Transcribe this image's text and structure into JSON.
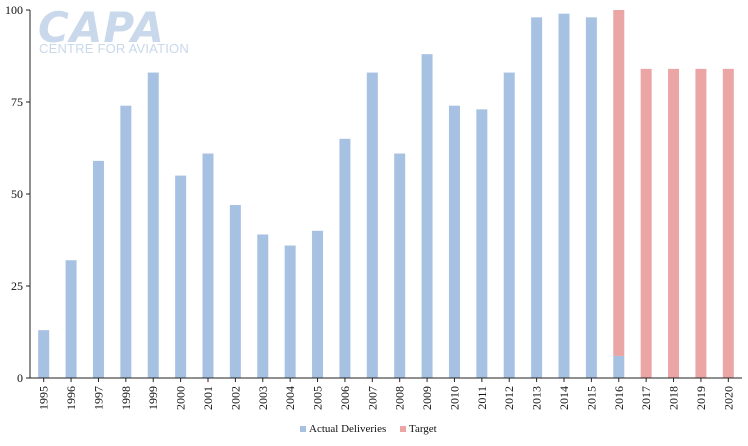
{
  "watermark": {
    "brand": "CAPA",
    "tagline": "CENTRE FOR AVIATION"
  },
  "chart_data": {
    "type": "bar",
    "stacked": true,
    "categories": [
      "1995",
      "1996",
      "1997",
      "1998",
      "1999",
      "2000",
      "2001",
      "2002",
      "2003",
      "2004",
      "2005",
      "2006",
      "2007",
      "2008",
      "2009",
      "2010",
      "2011",
      "2012",
      "2013",
      "2014",
      "2015",
      "2016",
      "2017",
      "2018",
      "2019",
      "2020"
    ],
    "series": [
      {
        "name": "Actual Deliveries",
        "color": "#a7c1e2",
        "values": [
          13,
          32,
          59,
          74,
          83,
          55,
          61,
          47,
          39,
          36,
          40,
          65,
          83,
          61,
          88,
          74,
          73,
          83,
          98,
          99,
          98,
          6,
          0,
          0,
          0,
          0
        ]
      },
      {
        "name": "Target",
        "color": "#eba5a5",
        "values": [
          0,
          0,
          0,
          0,
          0,
          0,
          0,
          0,
          0,
          0,
          0,
          0,
          0,
          0,
          0,
          0,
          0,
          0,
          0,
          0,
          0,
          94,
          84,
          84,
          84,
          84
        ]
      }
    ],
    "title": "",
    "xlabel": "",
    "ylabel": "",
    "ylim": [
      0,
      100
    ],
    "yticks": [
      0,
      25,
      50,
      75,
      100
    ],
    "grid": false,
    "legend_position": "bottom-center"
  }
}
